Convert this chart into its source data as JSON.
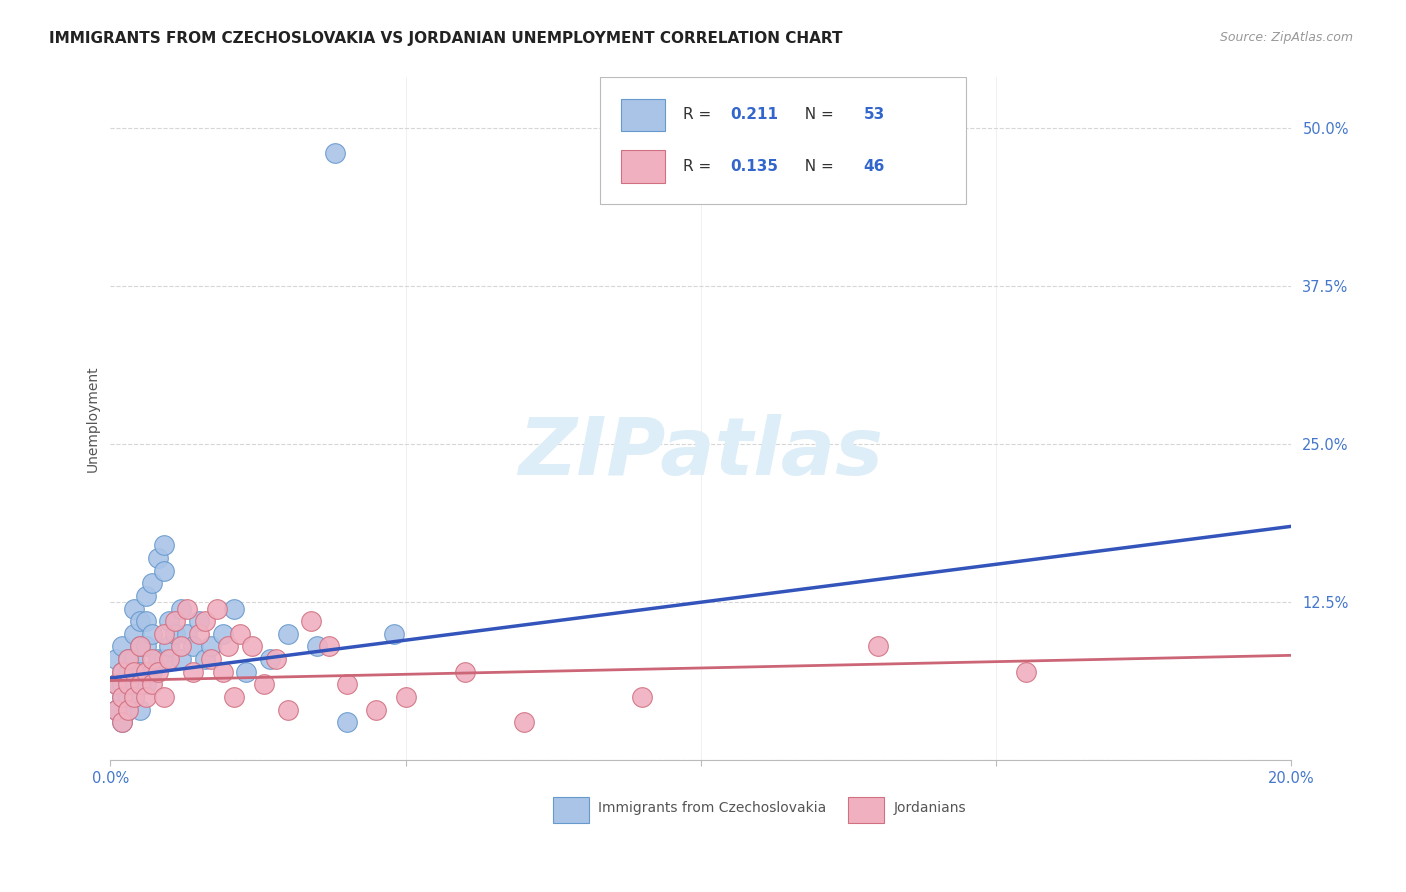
{
  "title": "IMMIGRANTS FROM CZECHOSLOVAKIA VS JORDANIAN UNEMPLOYMENT CORRELATION CHART",
  "source": "Source: ZipAtlas.com",
  "ylabel": "Unemployment",
  "xlim": [
    0.0,
    0.2
  ],
  "ylim": [
    0.0,
    0.54
  ],
  "yticks": [
    0.0,
    0.125,
    0.25,
    0.375,
    0.5
  ],
  "ytick_labels": [
    "",
    "12.5%",
    "25.0%",
    "37.5%",
    "50.0%"
  ],
  "xticks": [
    0.0,
    0.05,
    0.1,
    0.15,
    0.2
  ],
  "xtick_labels": [
    "0.0%",
    "",
    "",
    "",
    "20.0%"
  ],
  "series1_color": "#aac4e8",
  "series1_edge": "#6699cc",
  "series2_color": "#f0b0c0",
  "series2_edge": "#d07080",
  "line1_color": "#3355bb",
  "line2_color": "#cc6677",
  "background_color": "#ffffff",
  "grid_color": "#cccccc",
  "watermark": "ZIPatlas",
  "watermark_color": "#ddeef8",
  "watermark_fontsize": 58,
  "series1_x": [
    0.001,
    0.001,
    0.001,
    0.002,
    0.002,
    0.002,
    0.002,
    0.002,
    0.003,
    0.003,
    0.003,
    0.003,
    0.003,
    0.004,
    0.004,
    0.004,
    0.004,
    0.004,
    0.005,
    0.005,
    0.005,
    0.005,
    0.006,
    0.006,
    0.006,
    0.006,
    0.007,
    0.007,
    0.007,
    0.008,
    0.008,
    0.009,
    0.009,
    0.009,
    0.01,
    0.01,
    0.011,
    0.012,
    0.012,
    0.013,
    0.014,
    0.015,
    0.016,
    0.017,
    0.019,
    0.021,
    0.023,
    0.027,
    0.03,
    0.035,
    0.04,
    0.038,
    0.048
  ],
  "series1_y": [
    0.04,
    0.06,
    0.08,
    0.03,
    0.05,
    0.07,
    0.09,
    0.06,
    0.04,
    0.06,
    0.08,
    0.05,
    0.07,
    0.05,
    0.08,
    0.1,
    0.12,
    0.06,
    0.04,
    0.07,
    0.09,
    0.11,
    0.06,
    0.09,
    0.11,
    0.13,
    0.07,
    0.1,
    0.14,
    0.08,
    0.16,
    0.08,
    0.15,
    0.17,
    0.09,
    0.11,
    0.1,
    0.08,
    0.12,
    0.1,
    0.09,
    0.11,
    0.08,
    0.09,
    0.1,
    0.12,
    0.07,
    0.08,
    0.1,
    0.09,
    0.03,
    0.48,
    0.1
  ],
  "series2_x": [
    0.001,
    0.001,
    0.002,
    0.002,
    0.002,
    0.003,
    0.003,
    0.003,
    0.004,
    0.004,
    0.005,
    0.005,
    0.006,
    0.006,
    0.007,
    0.007,
    0.008,
    0.009,
    0.009,
    0.01,
    0.011,
    0.012,
    0.013,
    0.014,
    0.015,
    0.016,
    0.017,
    0.018,
    0.019,
    0.02,
    0.021,
    0.022,
    0.024,
    0.026,
    0.028,
    0.03,
    0.034,
    0.037,
    0.04,
    0.045,
    0.05,
    0.06,
    0.07,
    0.09,
    0.13,
    0.155
  ],
  "series2_y": [
    0.04,
    0.06,
    0.03,
    0.07,
    0.05,
    0.06,
    0.08,
    0.04,
    0.07,
    0.05,
    0.06,
    0.09,
    0.07,
    0.05,
    0.08,
    0.06,
    0.07,
    0.1,
    0.05,
    0.08,
    0.11,
    0.09,
    0.12,
    0.07,
    0.1,
    0.11,
    0.08,
    0.12,
    0.07,
    0.09,
    0.05,
    0.1,
    0.09,
    0.06,
    0.08,
    0.04,
    0.11,
    0.09,
    0.06,
    0.04,
    0.05,
    0.07,
    0.03,
    0.05,
    0.09,
    0.07
  ],
  "title_fontsize": 11,
  "axis_label_fontsize": 10,
  "tick_fontsize": 10.5
}
